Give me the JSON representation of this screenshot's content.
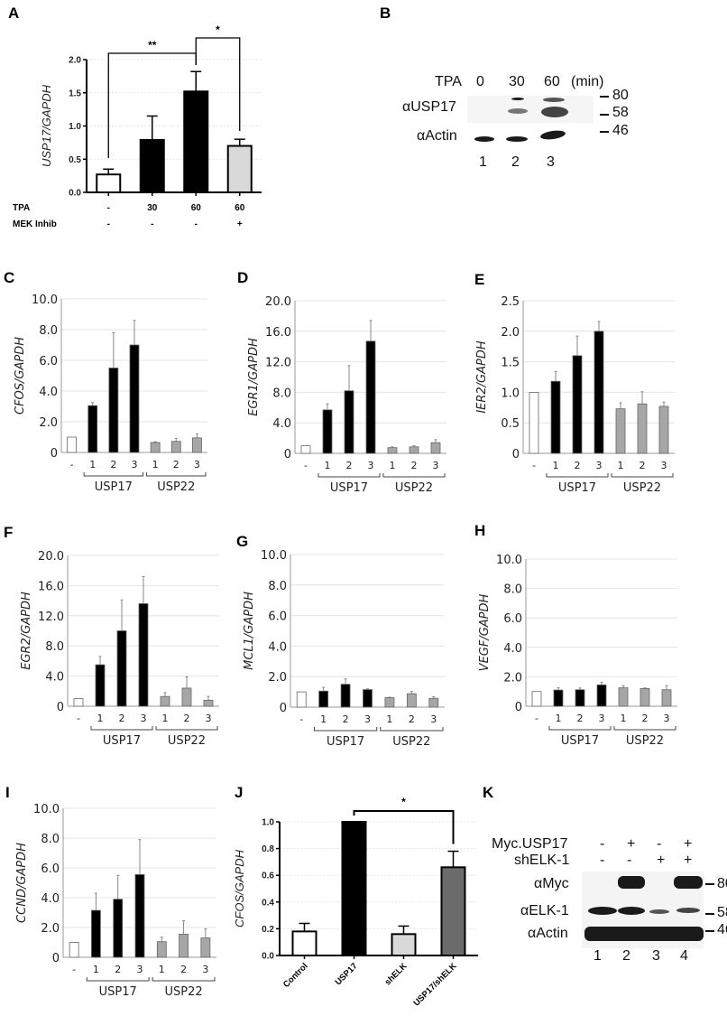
{
  "figure": {
    "panel_letters": [
      "A",
      "B",
      "C",
      "D",
      "E",
      "F",
      "G",
      "H",
      "I",
      "J",
      "K"
    ]
  },
  "colors": {
    "control": "#ffffff",
    "usp17": "#000000",
    "usp22": "#a6a6a6",
    "mek": "#d9d9d9",
    "shelk": "#d9d9d9",
    "usp17_shelk": "#6b6b6b",
    "error": "#888888",
    "grid": "#e4e4e4"
  },
  "chart_data": [
    {
      "id": "A",
      "type": "bar",
      "ylabel": "USP17/GAPDH",
      "ylim": [
        0,
        2.0
      ],
      "yticks": [
        "0.0",
        "0.5",
        "1.0",
        "1.5",
        "2.0"
      ],
      "ytick_values": [
        0,
        0.5,
        1.0,
        1.5,
        2.0
      ],
      "grid": true,
      "row_labels": [
        "TPA",
        "MEK Inhib"
      ],
      "columns": [
        {
          "tpa": "-",
          "mek": "-",
          "value": 0.27,
          "error": 0.08,
          "fill": "control"
        },
        {
          "tpa": "30",
          "mek": "-",
          "value": 0.79,
          "error": 0.36,
          "fill": "usp17"
        },
        {
          "tpa": "60",
          "mek": "-",
          "value": 1.52,
          "error": 0.3,
          "fill": "usp17"
        },
        {
          "tpa": "60",
          "mek": "+",
          "value": 0.7,
          "error": 0.1,
          "fill": "mek"
        }
      ],
      "significance": [
        {
          "from": 0,
          "to": 2,
          "label": "**"
        },
        {
          "from": 2,
          "to": 3,
          "label": "*"
        }
      ]
    },
    {
      "id": "C",
      "type": "bar",
      "ylabel": "CFOS/GAPDH",
      "ylim": [
        0,
        10
      ],
      "yticks": [
        "0",
        "2.0",
        "4.0",
        "6.0",
        "8.0",
        "10.0"
      ],
      "ytick_values": [
        0,
        2,
        4,
        6,
        8,
        10
      ],
      "grid": true,
      "categories": [
        "-",
        "1",
        "2",
        "3",
        "1",
        "2",
        "3"
      ],
      "groups": [
        "USP17",
        "USP22"
      ],
      "values": [
        1.0,
        3.05,
        5.5,
        7.0,
        0.65,
        0.72,
        0.95
      ],
      "errors": [
        0,
        0.2,
        2.3,
        1.6,
        0.05,
        0.2,
        0.25
      ]
    },
    {
      "id": "D",
      "type": "bar",
      "ylabel": "EGR1/GAPDH",
      "ylim": [
        0,
        20
      ],
      "yticks": [
        "0",
        "4.0",
        "8.0",
        "12.0",
        "16.0",
        "20.0"
      ],
      "ytick_values": [
        0,
        4,
        8,
        12,
        16,
        20
      ],
      "grid": true,
      "categories": [
        "-",
        "1",
        "2",
        "3",
        "1",
        "2",
        "3"
      ],
      "groups": [
        "USP17",
        "USP22"
      ],
      "values": [
        1.0,
        5.7,
        8.2,
        14.7,
        0.75,
        0.85,
        1.4
      ],
      "errors": [
        0,
        0.8,
        3.3,
        2.7,
        0.1,
        0.15,
        0.4
      ]
    },
    {
      "id": "E",
      "type": "bar",
      "ylabel": "IER2/GAPDH",
      "ylim": [
        0,
        2.5
      ],
      "yticks": [
        "0",
        "0.5",
        "1.0",
        "1.5",
        "2.0",
        "2.5"
      ],
      "ytick_values": [
        0,
        0.5,
        1.0,
        1.5,
        2.0,
        2.5
      ],
      "grid": true,
      "categories": [
        "-",
        "1",
        "2",
        "3",
        "1",
        "2",
        "3"
      ],
      "groups": [
        "USP17",
        "USP22"
      ],
      "values": [
        1.0,
        1.18,
        1.6,
        2.0,
        0.73,
        0.81,
        0.77
      ],
      "errors": [
        0,
        0.16,
        0.32,
        0.16,
        0.1,
        0.2,
        0.07
      ]
    },
    {
      "id": "F",
      "type": "bar",
      "ylabel": "EGR2/GAPDH",
      "ylim": [
        0,
        20
      ],
      "yticks": [
        "0",
        "4.0",
        "8.0",
        "12.0",
        "16.0",
        "20.0"
      ],
      "ytick_values": [
        0,
        4,
        8,
        12,
        16,
        20
      ],
      "grid": true,
      "categories": [
        "-",
        "1",
        "2",
        "3",
        "1",
        "2",
        "3"
      ],
      "groups": [
        "USP17",
        "USP22"
      ],
      "values": [
        1.0,
        5.5,
        10.0,
        13.6,
        1.3,
        2.4,
        0.8
      ],
      "errors": [
        0,
        1.1,
        4.1,
        3.6,
        0.5,
        1.5,
        0.5
      ]
    },
    {
      "id": "G",
      "type": "bar",
      "ylabel": "MCL1/GAPDH",
      "ylim": [
        0,
        10
      ],
      "yticks": [
        "0",
        "2.0",
        "4.0",
        "6.0",
        "8.0",
        "10.0"
      ],
      "ytick_values": [
        0,
        2,
        4,
        6,
        8,
        10
      ],
      "grid": true,
      "categories": [
        "-",
        "1",
        "2",
        "3",
        "1",
        "2",
        "3"
      ],
      "groups": [
        "USP17",
        "USP22"
      ],
      "values": [
        1.0,
        1.05,
        1.5,
        1.15,
        0.62,
        0.88,
        0.58
      ],
      "errors": [
        0,
        0.25,
        0.35,
        0.05,
        0.03,
        0.15,
        0.1
      ]
    },
    {
      "id": "H",
      "type": "bar",
      "ylabel": "VEGF/GAPDH",
      "ylim": [
        0,
        10
      ],
      "yticks": [
        "0",
        "2.0",
        "4.0",
        "6.0",
        "8.0",
        "10.0"
      ],
      "ytick_values": [
        0,
        2,
        4,
        6,
        8,
        10
      ],
      "grid": true,
      "categories": [
        "-",
        "1",
        "2",
        "3",
        "1",
        "2",
        "3"
      ],
      "groups": [
        "USP17",
        "USP22"
      ],
      "values": [
        1.0,
        1.1,
        1.12,
        1.45,
        1.25,
        1.2,
        1.12
      ],
      "errors": [
        0,
        0.15,
        0.12,
        0.18,
        0.15,
        0.05,
        0.28
      ]
    },
    {
      "id": "I",
      "type": "bar",
      "ylabel": "CCND/GAPDH",
      "ylim": [
        0,
        10
      ],
      "yticks": [
        "0",
        "2.0",
        "4.0",
        "6.0",
        "8.0",
        "10.0"
      ],
      "ytick_values": [
        0,
        2,
        4,
        6,
        8,
        10
      ],
      "grid": true,
      "categories": [
        "-",
        "1",
        "2",
        "3",
        "1",
        "2",
        "3"
      ],
      "groups": [
        "USP17",
        "USP22"
      ],
      "values": [
        1.0,
        3.15,
        3.9,
        5.55,
        1.05,
        1.55,
        1.3
      ],
      "errors": [
        0,
        1.15,
        1.6,
        2.35,
        0.3,
        0.9,
        0.6
      ]
    },
    {
      "id": "J",
      "type": "bar",
      "ylabel": "CFOS/GAPDH",
      "ylim": [
        0,
        1.0
      ],
      "yticks": [
        "0.0",
        "0.2",
        "0.4",
        "0.6",
        "0.8",
        "1.0"
      ],
      "ytick_values": [
        0,
        0.2,
        0.4,
        0.6,
        0.8,
        1.0
      ],
      "grid": true,
      "categories": [
        "Control",
        "USP17",
        "shELK",
        "USP17/shELK"
      ],
      "values": [
        0.18,
        1.0,
        0.16,
        0.66
      ],
      "errors": [
        0.06,
        0,
        0.06,
        0.12
      ],
      "fills": [
        "control",
        "usp17",
        "shelk",
        "usp17_shelk"
      ],
      "significance": [
        {
          "from": 1,
          "to": 3,
          "label": "*"
        }
      ]
    }
  ],
  "blots": {
    "B": {
      "header_label": "TPA",
      "conditions": [
        "0",
        "30",
        "60"
      ],
      "unit": "(min)",
      "rows": [
        "αUSP17",
        "αActin"
      ],
      "markers": [
        "80",
        "58",
        "46"
      ],
      "lanes": [
        "1",
        "2",
        "3"
      ]
    },
    "K": {
      "treatments": [
        {
          "label": "Myc.USP17",
          "values": [
            "-",
            "+",
            "-",
            "+"
          ]
        },
        {
          "label": "shELK-1",
          "values": [
            "-",
            "-",
            "+",
            "+"
          ]
        }
      ],
      "rows": [
        "αMyc",
        "αELK-1",
        "αActin"
      ],
      "markers": [
        "80",
        "58",
        "46"
      ],
      "lanes": [
        "1",
        "2",
        "3",
        "4"
      ]
    }
  }
}
